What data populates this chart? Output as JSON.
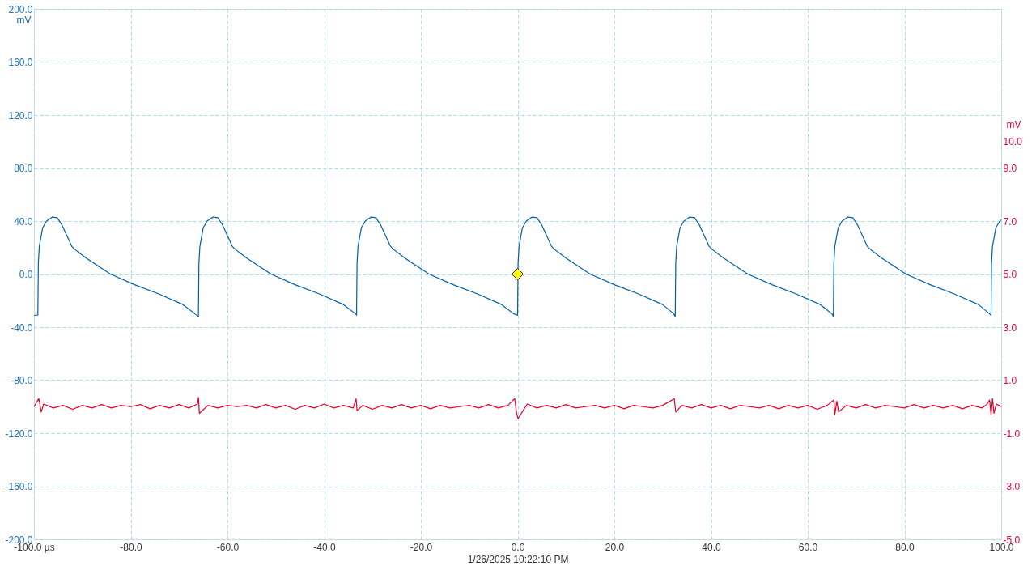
{
  "chart_data": {
    "type": "line",
    "xlabel": "1/26/2025 10:22:10 PM",
    "ylabel": "mV",
    "y2label": "mV",
    "xlim": [
      -100,
      100
    ],
    "xticks": [
      {
        "value": -100,
        "label": "-100.0 µs"
      },
      {
        "value": -80,
        "label": "-80.0"
      },
      {
        "value": -60,
        "label": "-60.0"
      },
      {
        "value": -40,
        "label": "-40.0"
      },
      {
        "value": -20,
        "label": "-20.0"
      },
      {
        "value": 0,
        "label": "0.0"
      },
      {
        "value": 20,
        "label": "20.0"
      },
      {
        "value": 40,
        "label": "40.0"
      },
      {
        "value": 60,
        "label": "60.0"
      },
      {
        "value": 80,
        "label": "80.0"
      },
      {
        "value": 100,
        "label": "100.0"
      }
    ],
    "ylim": [
      -200,
      200
    ],
    "yticks": [
      {
        "value": -200,
        "label": "-200.0"
      },
      {
        "value": -160,
        "label": "-160.0"
      },
      {
        "value": -120,
        "label": "-120.0"
      },
      {
        "value": -80,
        "label": "-80.0"
      },
      {
        "value": -40,
        "label": "-40.0"
      },
      {
        "value": 0,
        "label": "0.0"
      },
      {
        "value": 40,
        "label": "40.0"
      },
      {
        "value": 80,
        "label": "80.0"
      },
      {
        "value": 120,
        "label": "120.0"
      },
      {
        "value": 160,
        "label": "160.0"
      },
      {
        "value": 200,
        "label": "200.0"
      }
    ],
    "y2lim": [
      -5,
      15
    ],
    "y2ticks": [
      {
        "value": -5,
        "label": "-5.0"
      },
      {
        "value": -3,
        "label": "-3.0"
      },
      {
        "value": -1,
        "label": "-1.0"
      },
      {
        "value": 1,
        "label": "1.0"
      },
      {
        "value": 3,
        "label": "3.0"
      },
      {
        "value": 5,
        "label": "5.0"
      },
      {
        "value": 7,
        "label": "7.0"
      },
      {
        "value": 9,
        "label": "9.0"
      },
      {
        "value": 10,
        "label": "10.0"
      }
    ],
    "grid": true,
    "line_style": "solid",
    "marker": "none",
    "series": [
      {
        "color": "#0060a8",
        "x": [
          -100,
          -99.2,
          -99.1,
          -98.9,
          -98.2,
          -97.4,
          -96.2,
          -95.2,
          -94.2,
          -93.2,
          -92.2,
          -91.7,
          -89.2,
          -84.2,
          -79.2,
          -74.2,
          -69.2,
          -66.7,
          -66.0,
          -65.9,
          -65.7,
          -65.0,
          -64.2,
          -63.0,
          -62.0,
          -61.0,
          -60.0,
          -59.0,
          -58.5,
          -56.0,
          -51.0,
          -46.0,
          -41.0,
          -36.0,
          -33.5,
          -33.3,
          -33.2,
          -33.0,
          -32.3,
          -31.5,
          -30.3,
          -29.3,
          -28.3,
          -27.3,
          -26.3,
          -25.8,
          -23.3,
          -18.3,
          -13.3,
          -8.3,
          -3.3,
          -0.8,
          0.0,
          0.1,
          0.3,
          1.0,
          1.8,
          3.0,
          4.0,
          5.0,
          6.0,
          7.0,
          7.5,
          10.0,
          15.0,
          20.0,
          25.0,
          30.0,
          32.3,
          32.6,
          32.7,
          32.9,
          33.6,
          34.4,
          35.6,
          36.6,
          37.6,
          38.6,
          39.6,
          40.1,
          42.6,
          47.6,
          52.6,
          57.6,
          62.6,
          65.0,
          65.3,
          65.4,
          65.6,
          66.3,
          67.1,
          68.3,
          69.3,
          70.3,
          71.3,
          72.3,
          72.8,
          75.3,
          80.3,
          85.3,
          90.3,
          95.3,
          97.6,
          97.9,
          98.0,
          98.2,
          98.9,
          99.7,
          100
        ],
        "values": [
          -31,
          -31,
          8,
          21,
          35,
          40,
          43,
          42.5,
          37,
          29,
          21,
          19,
          12,
          0,
          -8,
          -15,
          -23,
          -30,
          -32,
          8,
          21,
          35,
          40,
          43,
          42.5,
          37,
          29,
          21,
          19,
          12,
          0,
          -8,
          -15,
          -23,
          -30,
          -31,
          8,
          21,
          35,
          40,
          43,
          42.5,
          37,
          29,
          21,
          19,
          12,
          0,
          -8,
          -15,
          -23,
          -30,
          -31,
          8,
          21,
          35,
          40,
          43,
          42.5,
          37,
          29,
          21,
          19,
          12,
          0,
          -8,
          -15,
          -23,
          -30,
          -32,
          8,
          21,
          35,
          40,
          43,
          42.5,
          37,
          29,
          21,
          19,
          12,
          0,
          -8,
          -15,
          -23,
          -30,
          -32,
          8,
          21,
          35,
          40,
          43,
          42.5,
          37,
          29,
          21,
          19,
          12,
          0,
          -8,
          -15,
          -23,
          -30,
          -31,
          8,
          21,
          35,
          40,
          41
        ]
      },
      {
        "color": "#e8002a",
        "axis": "y2",
        "x": [
          -100,
          -99,
          -98.5,
          -98,
          -96,
          -94,
          -92,
          -90,
          -88,
          -86,
          -84,
          -82,
          -80,
          -78,
          -76,
          -74,
          -72,
          -70,
          -68,
          -66.2,
          -66,
          -65.8,
          -64,
          -62,
          -60,
          -58,
          -56,
          -54,
          -52,
          -50,
          -48,
          -46,
          -44,
          -42,
          -40,
          -38,
          -36,
          -34,
          -33.4,
          -33.2,
          -32,
          -30,
          -28,
          -26,
          -24,
          -22,
          -20,
          -18,
          -16,
          -14,
          -12,
          -10,
          -8,
          -6,
          -4,
          -2,
          -0.6,
          -0.2,
          0.1,
          2,
          4,
          6,
          8,
          10,
          12,
          14,
          16,
          18,
          20,
          22,
          24,
          26,
          28,
          30,
          32.4,
          32.7,
          34,
          36,
          38,
          40,
          42,
          44,
          46,
          48,
          50,
          52,
          54,
          56,
          58,
          60,
          62,
          64,
          65.4,
          65.6,
          66,
          66.4,
          68,
          70,
          72,
          74,
          76,
          78,
          80,
          82,
          84,
          86,
          88,
          90,
          92,
          94,
          96,
          97,
          97.6,
          97.9,
          98.2,
          98.5,
          99,
          100
        ],
        "values": [
          0,
          0.3,
          -0.2,
          0.1,
          -0.05,
          0.05,
          -0.1,
          0.05,
          -0.05,
          0.08,
          -0.05,
          0.05,
          0,
          0.08,
          -0.08,
          0.05,
          -0.05,
          0.08,
          -0.05,
          0.1,
          0.35,
          -0.25,
          0.05,
          -0.05,
          0.05,
          0,
          0.05,
          -0.05,
          0.08,
          -0.05,
          0.05,
          -0.1,
          0.05,
          -0.05,
          0.1,
          -0.05,
          0.05,
          -0.05,
          0.3,
          -0.15,
          0.05,
          -0.1,
          0.05,
          -0.05,
          0.08,
          -0.05,
          0.05,
          -0.08,
          0.05,
          -0.05,
          0,
          0.05,
          -0.05,
          0.08,
          -0.05,
          0.05,
          0.3,
          -0.25,
          -0.45,
          0.1,
          -0.05,
          0.05,
          -0.05,
          0.08,
          -0.05,
          0,
          0.05,
          -0.05,
          0.05,
          -0.08,
          0.05,
          0,
          -0.05,
          0.05,
          0.3,
          -0.2,
          0.05,
          -0.05,
          0.08,
          -0.05,
          0.05,
          -0.08,
          0.05,
          0,
          -0.05,
          0.05,
          -0.08,
          0.05,
          -0.05,
          0.05,
          -0.1,
          0.05,
          0.25,
          -0.3,
          0.2,
          -0.2,
          0.05,
          -0.05,
          0.08,
          -0.05,
          0.05,
          0,
          -0.05,
          0.08,
          -0.05,
          0.05,
          -0.05,
          0.05,
          -0.08,
          0.05,
          -0.05,
          0.08,
          0.25,
          -0.3,
          0.3,
          -0.25,
          0.1,
          0
        ]
      },
      {
        "type": "scatter",
        "color": "#ffff00",
        "marker": "diamond",
        "x": [
          0
        ],
        "values": [
          0
        ]
      }
    ]
  }
}
